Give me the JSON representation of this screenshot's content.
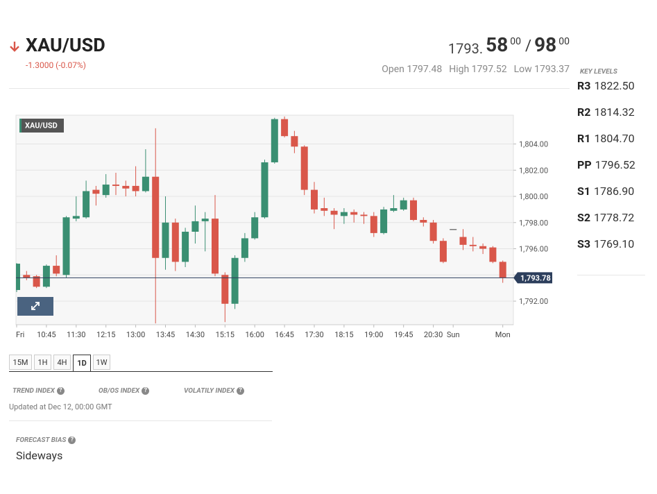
{
  "header": {
    "symbol": "XAU/USD",
    "change": "-1.3000 (-0.07%)",
    "bid_main": "1793.",
    "bid_big": "58",
    "bid_small": "00",
    "separator": "/",
    "ask_big": "98",
    "ask_small": "00",
    "open": "Open 1797.48",
    "high": "High 1797.52",
    "low": "Low 1793.37"
  },
  "key_levels": {
    "title": "KEY LEVELS",
    "levels": [
      {
        "name": "R3",
        "value": "1822.50"
      },
      {
        "name": "R2",
        "value": "1814.32"
      },
      {
        "name": "R1",
        "value": "1804.70"
      },
      {
        "name": "PP",
        "value": "1796.52"
      },
      {
        "name": "S1",
        "value": "1786.90"
      },
      {
        "name": "S2",
        "value": "1778.72"
      },
      {
        "name": "S3",
        "value": "1769.10"
      }
    ]
  },
  "chart_data": {
    "type": "candlestick",
    "legend": "XAU/USD",
    "categories": [
      "Fri",
      null,
      null,
      "10:45",
      null,
      null,
      "11:30",
      null,
      null,
      "12:15",
      null,
      null,
      "13:00",
      null,
      null,
      "13:45",
      null,
      null,
      "14:30",
      null,
      null,
      "15:15",
      null,
      null,
      "16:00",
      null,
      null,
      "16:45",
      null,
      null,
      "17:30",
      null,
      null,
      "18:15",
      null,
      null,
      "19:00",
      null,
      null,
      "19:45",
      null,
      null,
      "20:30",
      null,
      "Sun",
      null,
      null,
      null,
      null,
      "Mon"
    ],
    "open": [
      1792.85,
      1794,
      1793.9,
      1793.1,
      1794.7,
      1794,
      1798.3,
      1798.4,
      1800.5,
      1800.1,
      1800.9,
      1800.8,
      1800.8,
      1800.4,
      1801.5,
      1795.3,
      1798,
      1795,
      1797.3,
      1798.1,
      1798.3,
      1794,
      1791.8,
      1795.3,
      1796.8,
      1798.4,
      1802.6,
      1805.9,
      1804.6,
      1803.8,
      1800.5,
      1799.1,
      1798.9,
      1798.5,
      1798.8,
      1798.6,
      1798.5,
      1797.2,
      1798.9,
      1799,
      1799.7,
      1798.2,
      1798,
      1796.6,
      1797.5,
      1796.9,
      1796.3,
      1796.2,
      1796.1,
      1795
    ],
    "high": [
      1794.9,
      1794.3,
      1794,
      1794.8,
      1795.5,
      1798.5,
      1800,
      1801.2,
      1800.8,
      1801.7,
      1801.8,
      1801.2,
      1802.3,
      1803.6,
      1805.2,
      1800,
      1798.3,
      1797.6,
      1799.3,
      1798.8,
      1800.1,
      1794.2,
      1795.5,
      1797.2,
      1798.8,
      1802.8,
      1806,
      1806.1,
      1805,
      1803.9,
      1801.1,
      1799.9,
      1799.1,
      1799.1,
      1799,
      1798.8,
      1798.8,
      1799.2,
      1800.1,
      1799.9,
      1799.9,
      1798.4,
      1798.2,
      1796.8,
      1797.5,
      1797.5,
      1796.9,
      1796.4,
      1796.2,
      1795.1
    ],
    "low": [
      1792.7,
      1793.6,
      1793,
      1793,
      1793.9,
      1793.8,
      1798.1,
      1798.3,
      1799.3,
      1799.9,
      1800.1,
      1800,
      1800,
      1800.3,
      1790.3,
      1794.4,
      1794.3,
      1794.6,
      1796.4,
      1795.8,
      1793.9,
      1790.4,
      1791.4,
      1795,
      1796.7,
      1798.3,
      1802.5,
      1804.5,
      1803.3,
      1800.1,
      1798.7,
      1798.5,
      1797.5,
      1797.9,
      1798,
      1797.9,
      1796.9,
      1797.1,
      1798.8,
      1798.9,
      1798.1,
      1797.7,
      1796.4,
      1794.9,
      1797.5,
      1795.9,
      1795.8,
      1795.6,
      1794.9,
      1793.4
    ],
    "close": [
      1794.86,
      1793.8,
      1793.1,
      1794.7,
      1794.1,
      1798.4,
      1798.5,
      1800.4,
      1800.2,
      1800.9,
      1800.8,
      1800.6,
      1800.4,
      1801.5,
      1795.3,
      1798,
      1795,
      1797.3,
      1798.1,
      1798.3,
      1794.1,
      1791.8,
      1795.3,
      1796.8,
      1798.4,
      1802.6,
      1805.9,
      1804.6,
      1803.8,
      1800.5,
      1799,
      1798.9,
      1798.6,
      1798.8,
      1798.6,
      1798.5,
      1797.2,
      1799,
      1799.1,
      1799.7,
      1798.2,
      1798,
      1796.6,
      1795,
      1797.5,
      1796.3,
      1796.2,
      1796,
      1795,
      1793.8
    ],
    "up_color": "#3a8f72",
    "down_color": "#d9574a",
    "flat_color": "#555555",
    "ylim": [
      1790.2,
      1806.2
    ],
    "yticks": [
      {
        "value": 1792,
        "label": "1,792.00"
      },
      {
        "value": 1794,
        "label": "1,794.00"
      },
      {
        "value": 1796,
        "label": "1,796.00"
      },
      {
        "value": 1798,
        "label": "1,798.00"
      },
      {
        "value": 1800,
        "label": "1,800.00"
      },
      {
        "value": 1802,
        "label": "1,802.00"
      },
      {
        "value": 1804,
        "label": "1,804.00"
      }
    ],
    "grid": true,
    "last": {
      "value": 1793.78,
      "label": "1,793.78"
    }
  },
  "timeframes": {
    "buttons": [
      "15M",
      "1H",
      "4H",
      "1D",
      "1W"
    ],
    "active": "1D"
  },
  "indices": {
    "labels": [
      "TREND INDEX",
      "OB/OS INDEX",
      "VOLATILY INDEX"
    ],
    "updated": "Updated at Dec 12, 00:00 GMT"
  },
  "forecast": {
    "title": "FORECAST BIAS",
    "value": "Sideways"
  }
}
